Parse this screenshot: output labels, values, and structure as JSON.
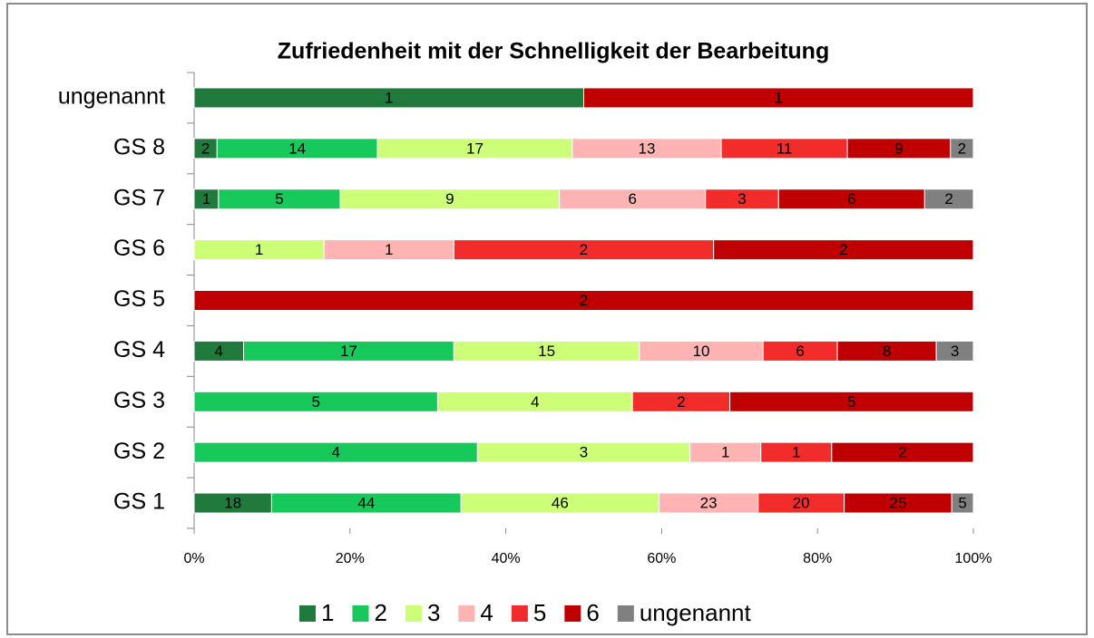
{
  "chart_data": {
    "type": "bar",
    "orientation": "horizontal",
    "stacking": "percent",
    "title": "Zufriedenheit mit der  Schnelligkeit der Bearbeitung",
    "categories": [
      "ungenannt",
      "GS 8",
      "GS 7",
      "GS 6",
      "GS 5",
      "GS 4",
      "GS 3",
      "GS 2",
      "GS 1"
    ],
    "series": [
      {
        "name": "1",
        "color": "#1f7a3c",
        "values": [
          1,
          2,
          1,
          null,
          null,
          4,
          null,
          null,
          18
        ]
      },
      {
        "name": "2",
        "color": "#17c95a",
        "values": [
          null,
          14,
          5,
          null,
          null,
          17,
          5,
          4,
          44
        ]
      },
      {
        "name": "3",
        "color": "#ccff77",
        "values": [
          null,
          17,
          9,
          1,
          null,
          15,
          4,
          3,
          46
        ]
      },
      {
        "name": "4",
        "color": "#ffb3b3",
        "values": [
          null,
          13,
          6,
          1,
          null,
          10,
          null,
          1,
          23
        ]
      },
      {
        "name": "5",
        "color": "#f22b2b",
        "values": [
          null,
          11,
          3,
          2,
          null,
          6,
          2,
          1,
          20
        ]
      },
      {
        "name": "6",
        "color": "#c00000",
        "values": [
          1,
          9,
          6,
          2,
          2,
          8,
          5,
          2,
          25
        ]
      },
      {
        "name": "ungenannt",
        "color": "#808080",
        "values": [
          null,
          2,
          2,
          null,
          null,
          3,
          null,
          null,
          5
        ]
      }
    ],
    "xlim": [
      0,
      100
    ],
    "xticks": [
      {
        "value": 0,
        "label": "0%"
      },
      {
        "value": 20,
        "label": "20%"
      },
      {
        "value": 40,
        "label": "40%"
      },
      {
        "value": 60,
        "label": "60%"
      },
      {
        "value": 80,
        "label": "80%"
      },
      {
        "value": 100,
        "label": "100%"
      }
    ],
    "legend": "bottom"
  }
}
